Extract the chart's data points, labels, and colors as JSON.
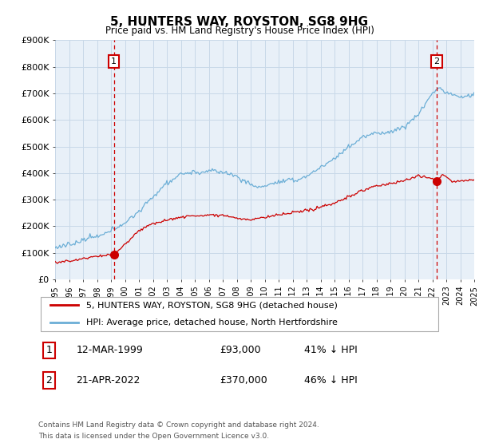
{
  "title": "5, HUNTERS WAY, ROYSTON, SG8 9HG",
  "subtitle": "Price paid vs. HM Land Registry's House Price Index (HPI)",
  "ylim": [
    0,
    900000
  ],
  "yticks": [
    0,
    100000,
    200000,
    300000,
    400000,
    500000,
    600000,
    700000,
    800000,
    900000
  ],
  "ytick_labels": [
    "£0",
    "£100K",
    "£200K",
    "£300K",
    "£400K",
    "£500K",
    "£600K",
    "£700K",
    "£800K",
    "£900K"
  ],
  "x_start_year": 1995,
  "x_end_year": 2025,
  "marker1_year": 1999.2,
  "marker1_value": 93000,
  "marker2_year": 2022.3,
  "marker2_value": 370000,
  "line_red_color": "#cc0000",
  "line_blue_color": "#6baed6",
  "grid_color": "#c8d8e8",
  "plot_bg_color": "#e8f0f8",
  "legend_line1": "5, HUNTERS WAY, ROYSTON, SG8 9HG (detached house)",
  "legend_line2": "HPI: Average price, detached house, North Hertfordshire",
  "table_row1_num": "1",
  "table_row1_date": "12-MAR-1999",
  "table_row1_price": "£93,000",
  "table_row1_hpi": "41% ↓ HPI",
  "table_row2_num": "2",
  "table_row2_date": "21-APR-2022",
  "table_row2_price": "£370,000",
  "table_row2_hpi": "46% ↓ HPI",
  "footer1": "Contains HM Land Registry data © Crown copyright and database right 2024.",
  "footer2": "This data is licensed under the Open Government Licence v3.0."
}
